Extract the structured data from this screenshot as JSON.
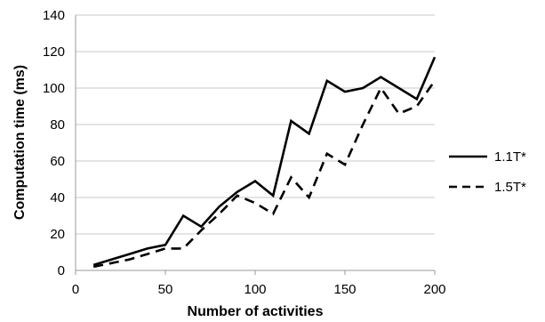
{
  "chart_data": {
    "type": "line",
    "xlabel": "Number of activities",
    "ylabel": "Computation time (ms)",
    "xlim": [
      0,
      200
    ],
    "ylim": [
      0,
      140
    ],
    "x_ticks": [
      0,
      50,
      100,
      150,
      200
    ],
    "y_ticks": [
      0,
      20,
      40,
      60,
      80,
      100,
      120,
      140
    ],
    "grid": "horizontal",
    "legend_position": "right",
    "series": [
      {
        "name": "1.1T*",
        "style": "solid",
        "color": "#000000",
        "x": [
          10,
          20,
          30,
          40,
          50,
          60,
          70,
          80,
          90,
          100,
          110,
          120,
          130,
          140,
          150,
          160,
          170,
          180,
          190,
          200
        ],
        "values": [
          3,
          6,
          9,
          12,
          14,
          30,
          24,
          35,
          43,
          49,
          41,
          82,
          75,
          104,
          98,
          100,
          106,
          100,
          94,
          117
        ]
      },
      {
        "name": "1.5T*",
        "style": "dashed",
        "color": "#000000",
        "x": [
          10,
          20,
          30,
          40,
          50,
          60,
          70,
          80,
          90,
          100,
          110,
          120,
          130,
          140,
          150,
          160,
          170,
          180,
          190,
          200
        ],
        "values": [
          2,
          4,
          6,
          9,
          12,
          12,
          22,
          31,
          41,
          37,
          31,
          51,
          40,
          64,
          58,
          80,
          100,
          86,
          90,
          104
        ]
      }
    ]
  }
}
